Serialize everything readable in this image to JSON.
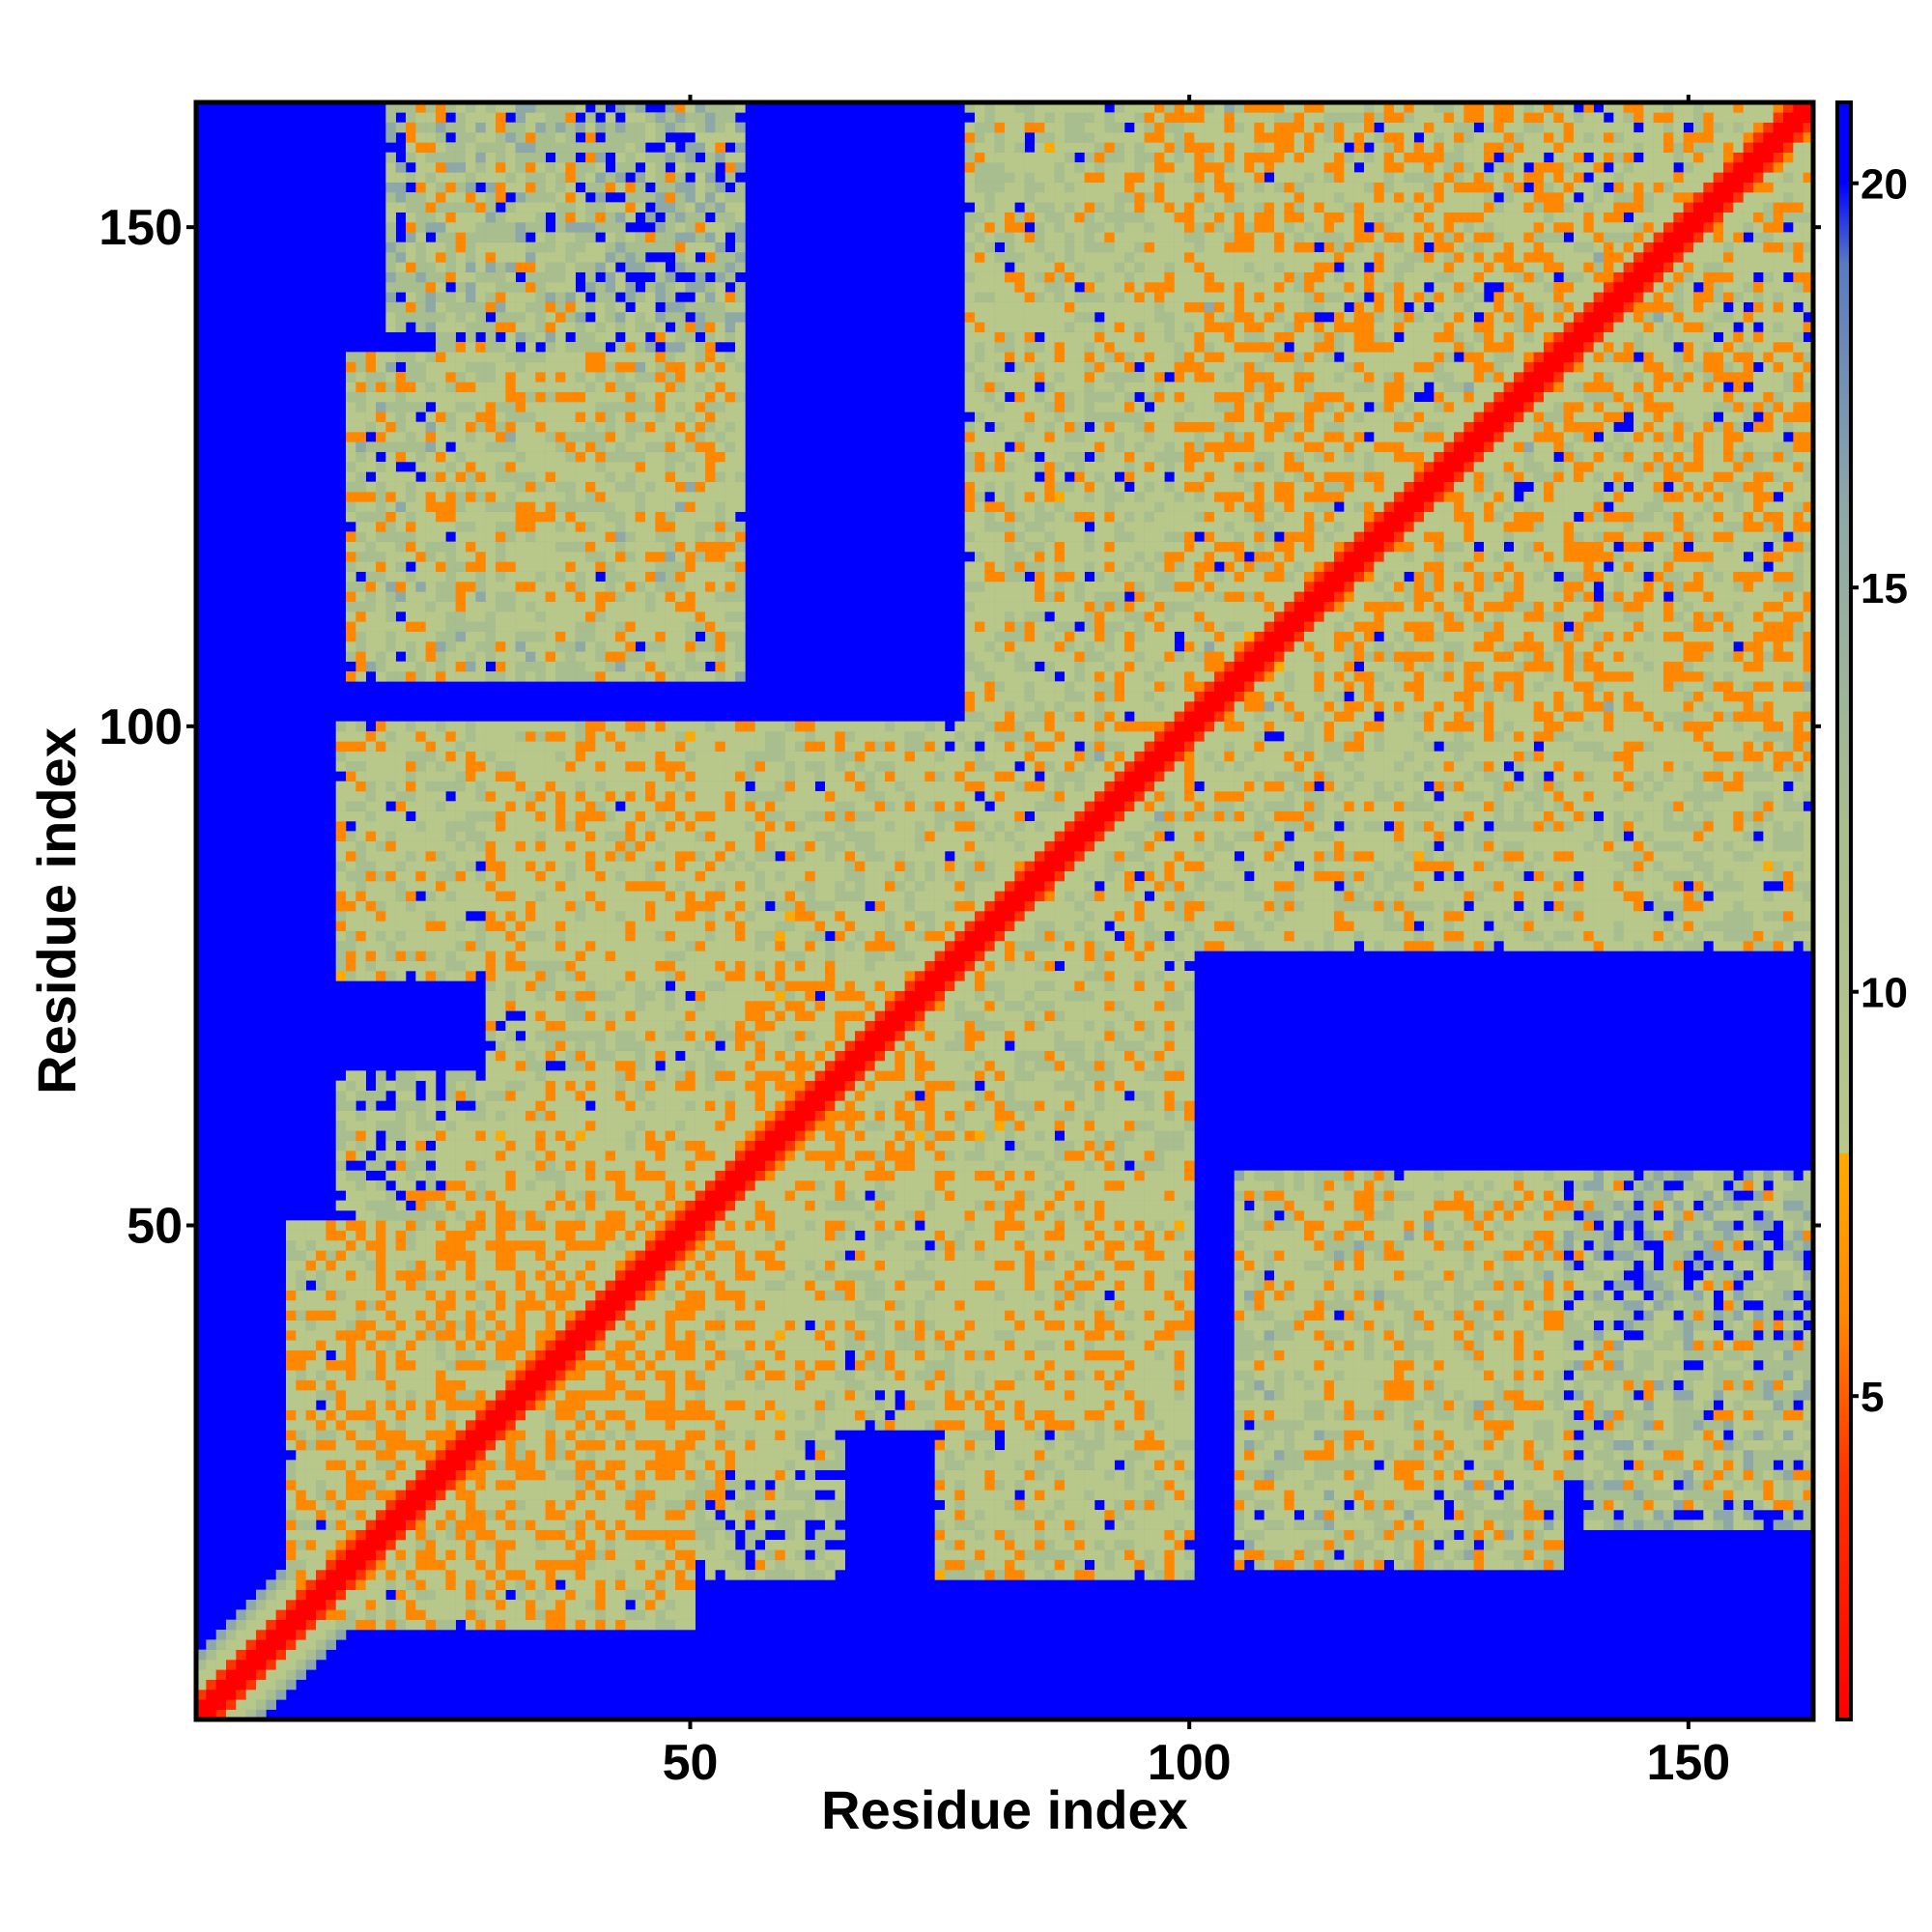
{
  "chart_data": {
    "type": "heatmap",
    "title": "",
    "xlabel": "Residue index",
    "ylabel": "Residue index",
    "xlim": [
      1,
      162
    ],
    "ylim": [
      1,
      162
    ],
    "x_ticks": [
      50,
      100,
      150
    ],
    "y_ticks": [
      50,
      100,
      150
    ],
    "colorbar": {
      "range": [
        1,
        21
      ],
      "ticks": [
        5,
        10,
        15,
        20
      ],
      "colors": [
        {
          "value": 1,
          "color": "#ff0000"
        },
        {
          "value": 4,
          "color": "#ff3300"
        },
        {
          "value": 6,
          "color": "#ff8800"
        },
        {
          "value": 8,
          "color": "#ffaa00"
        },
        {
          "value": 8.01,
          "color": "#b8c78a"
        },
        {
          "value": 12,
          "color": "#a8be8e"
        },
        {
          "value": 16,
          "color": "#8ea8a8"
        },
        {
          "value": 19,
          "color": "#5a7ac0"
        },
        {
          "value": 20.01,
          "color": "#0000ff"
        },
        {
          "value": 21,
          "color": "#0000ff"
        }
      ]
    },
    "value_description": "Pairwise residue distance map (symmetric, matrix 162x162); blue = distance >= 20",
    "contact_regions": [
      {
        "x": [
          1,
          162
        ],
        "y": [
          1,
          162
        ],
        "pattern": "diagonal",
        "value": 2
      },
      {
        "x": [
          10,
          50
        ],
        "y": [
          10,
          50
        ],
        "pattern": "block",
        "value": 11
      },
      {
        "x": [
          15,
          60
        ],
        "y": [
          25,
          65
        ],
        "pattern": "block",
        "value": 12
      },
      {
        "x": [
          30,
          100
        ],
        "y": [
          30,
          100
        ],
        "pattern": "block",
        "value": 12
      },
      {
        "x": [
          15,
          55
        ],
        "y": [
          75,
          100
        ],
        "pattern": "block",
        "value": 12
      },
      {
        "x": [
          75,
          100
        ],
        "y": [
          15,
          55
        ],
        "pattern": "block",
        "value": 12
      },
      {
        "x": [
          16,
          55
        ],
        "y": [
          105,
          137
        ],
        "pattern": "block",
        "value": 13
      },
      {
        "x": [
          105,
          137
        ],
        "y": [
          16,
          55
        ],
        "pattern": "block",
        "value": 13
      },
      {
        "x": [
          22,
          38
        ],
        "y": [
          140,
          162
        ],
        "pattern": "block",
        "value": 14
      },
      {
        "x": [
          78,
          100
        ],
        "y": [
          100,
          162
        ],
        "pattern": "block",
        "value": 12
      },
      {
        "x": [
          100,
          162
        ],
        "y": [
          78,
          100
        ],
        "pattern": "block",
        "value": 12
      },
      {
        "x": [
          100,
          162
        ],
        "y": [
          100,
          162
        ],
        "pattern": "block",
        "value": 11
      },
      {
        "x": [
          110,
          140
        ],
        "y": [
          25,
          55
        ],
        "pattern": "block",
        "value": 13
      },
      {
        "x": [
          140,
          162
        ],
        "y": [
          20,
          55
        ],
        "pattern": "block",
        "value": 14
      },
      {
        "x": [
          55,
          75
        ],
        "y": [
          55,
          75
        ],
        "pattern": "block",
        "value": 11
      },
      {
        "x": [
          140,
          162
        ],
        "y": [
          95,
          105
        ],
        "pattern": "block",
        "value": 14
      }
    ]
  }
}
